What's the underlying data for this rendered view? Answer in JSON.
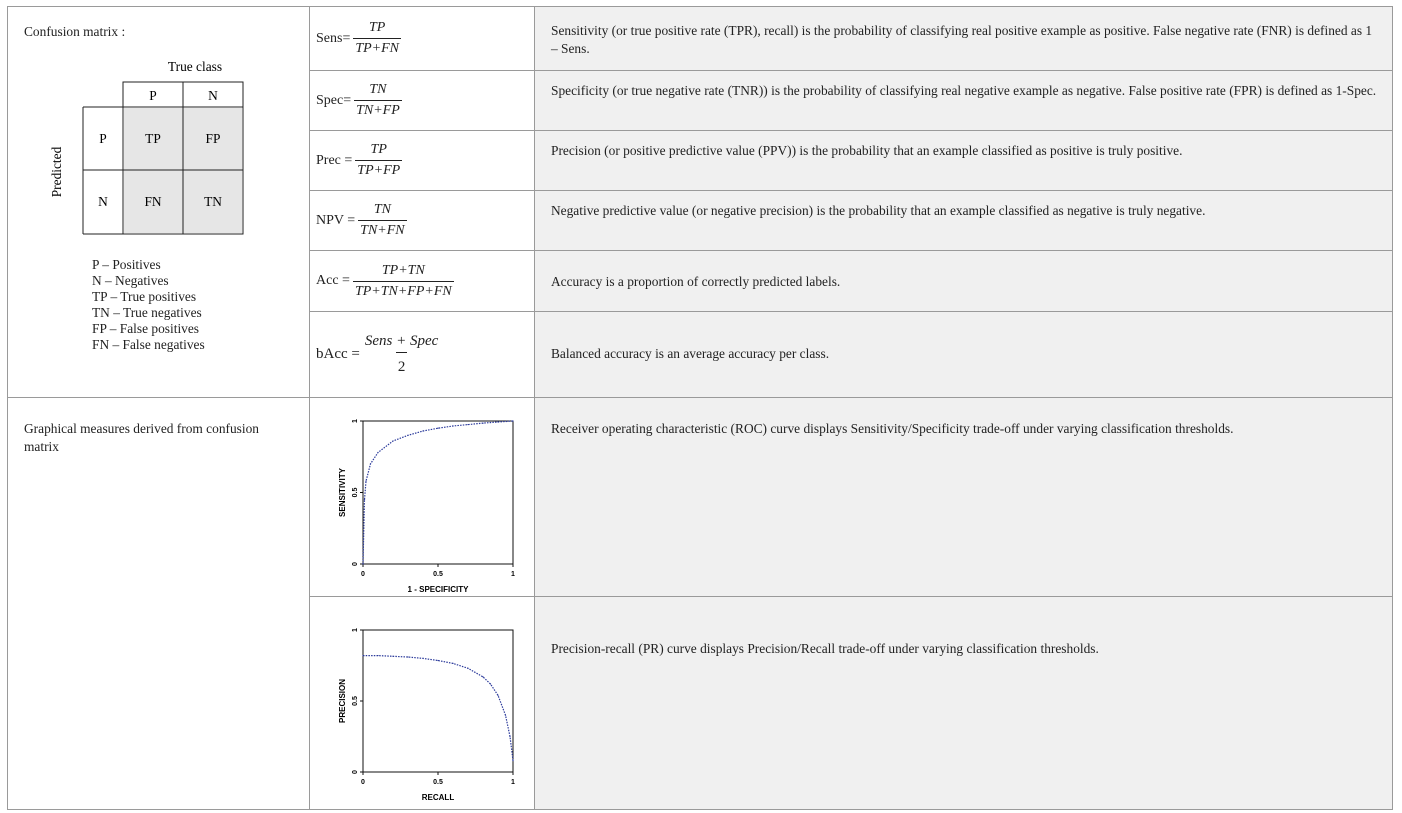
{
  "confusion_matrix": {
    "title": "Confusion matrix :",
    "true_class_label": "True class",
    "predicted_label": "Predicted",
    "col_headers": [
      "P",
      "N"
    ],
    "row_headers": [
      "P",
      "N"
    ],
    "cells": [
      [
        "TP",
        "FP"
      ],
      [
        "FN",
        "TN"
      ]
    ],
    "legend": [
      "P – Positives",
      "N – Negatives",
      "TP – True positives",
      "TN – True negatives",
      "FP – False positives",
      "FN – False negatives"
    ]
  },
  "metrics": [
    {
      "lhs": "Sens=",
      "num": "TP",
      "den": "TP+FN",
      "desc": "Sensitivity (or true positive rate (TPR), recall) is the probability of classifying real positive example as positive. False negative rate (FNR) is defined as 1 – Sens."
    },
    {
      "lhs": "Spec=",
      "num": "TN",
      "den": "TN+FP",
      "desc": "Specificity (or true negative rate (TNR)) is the probability of classifying real negative example as negative. False positive rate (FPR) is defined as 1-Spec."
    },
    {
      "lhs": "Prec =",
      "num": "TP",
      "den": "TP+FP",
      "desc": "Precision (or positive predictive value (PPV)) is the probability that an example classified as positive is truly positive."
    },
    {
      "lhs": "NPV =",
      "num": "TN",
      "den": "TN+FN",
      "desc": "Negative predictive value (or negative precision) is the probability that an example classified as negative is truly negative."
    },
    {
      "lhs": "Acc =",
      "num": "TP+TN",
      "den": "TP+TN+FP+FN",
      "desc": "Accuracy is a proportion of correctly predicted labels."
    },
    {
      "lhs": "bAcc =",
      "num": "Sens + Spec",
      "den": "2",
      "desc": "Balanced accuracy is an average accuracy per class."
    }
  ],
  "graphical": {
    "title": "Graphical measures derived from confusion matrix",
    "roc_desc": "Receiver operating characteristic (ROC) curve displays Sensitivity/Specificity trade-off under varying classification thresholds.",
    "pr_desc": "Precision-recall (PR) curve displays Precision/Recall trade-off under varying classification thresholds."
  },
  "chart_data": [
    {
      "type": "line",
      "xlabel": "1 - SPECIFICITY",
      "ylabel": "SENSITIVITY",
      "xlim": [
        0,
        1
      ],
      "ylim": [
        0,
        1
      ],
      "xticks": [
        "0",
        "0.5",
        "1"
      ],
      "yticks": [
        "0",
        "0.5",
        "1"
      ],
      "x": [
        0,
        0.01,
        0.02,
        0.05,
        0.1,
        0.2,
        0.3,
        0.4,
        0.5,
        0.6,
        0.7,
        0.8,
        0.9,
        1.0
      ],
      "y": [
        0,
        0.45,
        0.58,
        0.7,
        0.78,
        0.86,
        0.9,
        0.93,
        0.95,
        0.965,
        0.975,
        0.985,
        0.993,
        1.0
      ],
      "color": "#2b3a9b"
    },
    {
      "type": "line",
      "xlabel": "RECALL",
      "ylabel": "PRECISION",
      "xlim": [
        0,
        1
      ],
      "ylim": [
        0,
        1
      ],
      "xticks": [
        "0",
        "0.5",
        "1"
      ],
      "yticks": [
        "0",
        "0.5",
        "1"
      ],
      "x": [
        0,
        0.1,
        0.2,
        0.3,
        0.4,
        0.5,
        0.6,
        0.7,
        0.8,
        0.85,
        0.9,
        0.95,
        0.98,
        1.0
      ],
      "y": [
        0.82,
        0.82,
        0.815,
        0.81,
        0.8,
        0.785,
        0.765,
        0.73,
        0.67,
        0.62,
        0.54,
        0.4,
        0.25,
        0.08
      ],
      "color": "#2b3a9b"
    }
  ]
}
